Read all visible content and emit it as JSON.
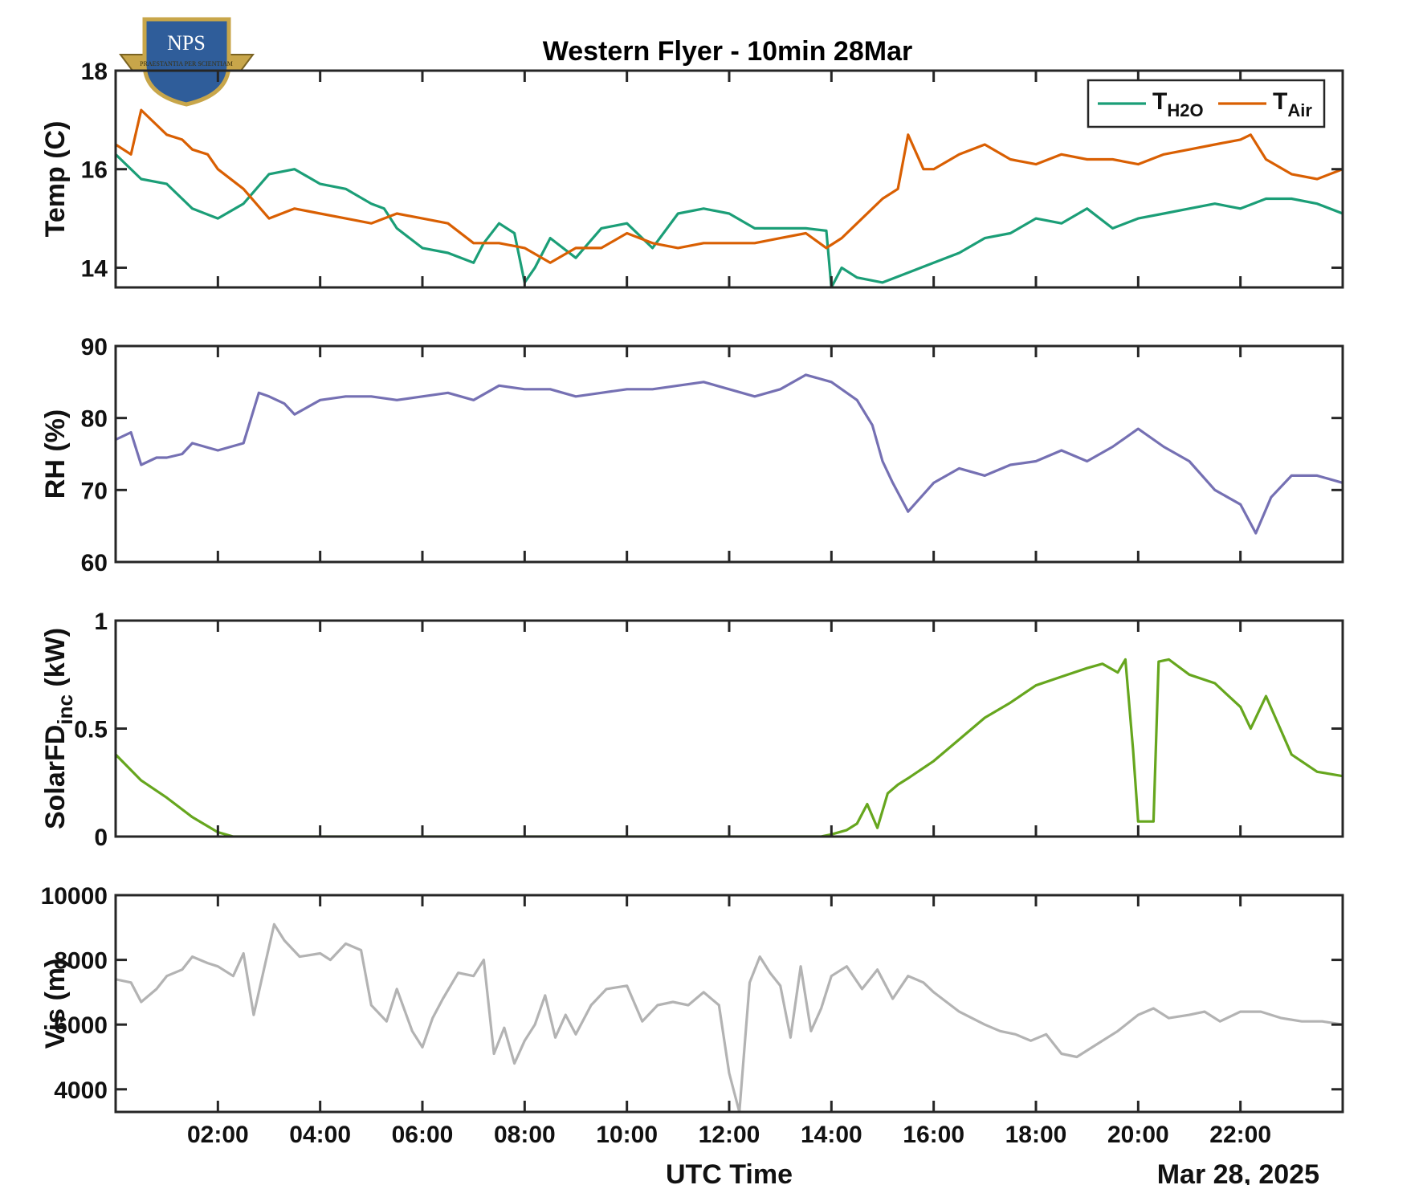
{
  "figure": {
    "title": "Western Flyer - 10min 28Mar",
    "xlabel": "UTC Time",
    "date_label": "Mar 28, 2025",
    "logo": {
      "text": "NPS",
      "motto": "PRAESTANTIA PER SCIENTIAM",
      "colors": {
        "shield": "#2f5d9a",
        "gold": "#c8a64a"
      }
    }
  },
  "chart_data": [
    {
      "type": "line",
      "ylabel": "Temp (C)",
      "ylim": [
        13.6,
        18
      ],
      "yticks": [
        14,
        16,
        18
      ],
      "xlim": [
        0,
        24
      ],
      "xticks": [
        2,
        4,
        6,
        8,
        10,
        12,
        14,
        16,
        18,
        20,
        22
      ],
      "xtick_labels": [
        "02:00",
        "04:00",
        "06:00",
        "08:00",
        "10:00",
        "12:00",
        "14:00",
        "16:00",
        "18:00",
        "20:00",
        "22:00"
      ],
      "legend": {
        "placement": "top-right"
      },
      "series": [
        {
          "name": "H2O",
          "legend_main": "T",
          "legend_sub": "H2O",
          "color": "#1b9e77",
          "x": [
            0,
            0.5,
            1,
            1.5,
            2,
            2.5,
            3,
            3.5,
            4,
            4.5,
            5,
            5.25,
            5.5,
            6,
            6.5,
            7,
            7.2,
            7.5,
            7.8,
            8,
            8.2,
            8.5,
            9,
            9.5,
            10,
            10.5,
            11,
            11.5,
            12,
            12.5,
            13,
            13.5,
            13.9,
            14,
            14.2,
            14.5,
            15,
            15.5,
            16,
            16.5,
            17,
            17.5,
            18,
            18.5,
            19,
            19.5,
            20,
            20.5,
            21,
            21.5,
            22,
            22.5,
            23,
            23.5,
            24
          ],
          "values": [
            16.3,
            15.8,
            15.7,
            15.2,
            15.0,
            15.3,
            15.9,
            16.0,
            15.7,
            15.6,
            15.3,
            15.2,
            14.8,
            14.4,
            14.3,
            14.1,
            14.5,
            14.9,
            14.7,
            13.7,
            14.0,
            14.6,
            14.2,
            14.8,
            14.9,
            14.4,
            15.1,
            15.2,
            15.1,
            14.8,
            14.8,
            14.8,
            14.75,
            13.6,
            14.0,
            13.8,
            13.7,
            13.9,
            14.1,
            14.3,
            14.6,
            14.7,
            15.0,
            14.9,
            15.2,
            14.8,
            15.0,
            15.1,
            15.2,
            15.3,
            15.2,
            15.4,
            15.4,
            15.3,
            15.1
          ]
        },
        {
          "name": "Air",
          "legend_main": "T",
          "legend_sub": "Air",
          "color": "#d95f02",
          "x": [
            0,
            0.3,
            0.5,
            0.8,
            1,
            1.3,
            1.5,
            1.8,
            2,
            2.5,
            3,
            3.5,
            4,
            4.5,
            5,
            5.5,
            6,
            6.5,
            7,
            7.5,
            8,
            8.5,
            9,
            9.5,
            10,
            10.5,
            11,
            11.5,
            12,
            12.5,
            13,
            13.5,
            13.9,
            14.2,
            14.5,
            15,
            15.3,
            15.5,
            15.8,
            16,
            16.5,
            17,
            17.5,
            18,
            18.5,
            19,
            19.5,
            20,
            20.5,
            21,
            21.5,
            22,
            22.2,
            22.5,
            23,
            23.5,
            24
          ],
          "values": [
            16.5,
            16.3,
            17.2,
            16.9,
            16.7,
            16.6,
            16.4,
            16.3,
            16.0,
            15.6,
            15.0,
            15.2,
            15.1,
            15.0,
            14.9,
            15.1,
            15.0,
            14.9,
            14.5,
            14.5,
            14.4,
            14.1,
            14.4,
            14.4,
            14.7,
            14.5,
            14.4,
            14.5,
            14.5,
            14.5,
            14.6,
            14.7,
            14.4,
            14.6,
            14.9,
            15.4,
            15.6,
            16.7,
            16.0,
            16.0,
            16.3,
            16.5,
            16.2,
            16.1,
            16.3,
            16.2,
            16.2,
            16.1,
            16.3,
            16.4,
            16.5,
            16.6,
            16.7,
            16.2,
            15.9,
            15.8,
            16.0
          ]
        }
      ]
    },
    {
      "type": "line",
      "ylabel": "RH (%)",
      "ylim": [
        60,
        90
      ],
      "yticks": [
        60,
        70,
        80,
        90
      ],
      "xlim": [
        0,
        24
      ],
      "series": [
        {
          "color": "#7570b3",
          "x": [
            0,
            0.3,
            0.5,
            0.8,
            1,
            1.3,
            1.5,
            2,
            2.5,
            2.8,
            3,
            3.3,
            3.5,
            4,
            4.5,
            5,
            5.5,
            6,
            6.5,
            7,
            7.5,
            8,
            8.5,
            9,
            9.5,
            10,
            10.5,
            11,
            11.5,
            12,
            12.5,
            13,
            13.5,
            14,
            14.5,
            14.8,
            15,
            15.2,
            15.5,
            16,
            16.5,
            17,
            17.5,
            18,
            18.5,
            19,
            19.5,
            20,
            20.5,
            21,
            21.5,
            22,
            22.3,
            22.6,
            23,
            23.5,
            24
          ],
          "values": [
            77,
            78,
            73.5,
            74.5,
            74.5,
            75,
            76.5,
            75.5,
            76.5,
            83.5,
            83,
            82,
            80.5,
            82.5,
            83,
            83,
            82.5,
            83,
            83.5,
            82.5,
            84.5,
            84,
            84,
            83,
            83.5,
            84,
            84,
            84.5,
            85,
            84,
            83,
            84,
            86,
            85,
            82.5,
            79,
            74,
            71,
            67,
            71,
            73,
            72,
            73.5,
            74,
            75.5,
            74,
            76,
            78.5,
            76,
            74,
            70,
            68,
            64,
            69,
            72,
            72,
            71
          ]
        }
      ]
    },
    {
      "type": "line",
      "ylabel": "SolarFD",
      "ylabel_sub": "inc",
      "ylabel_unit": "(kW)",
      "ylim": [
        0,
        1
      ],
      "yticks": [
        0,
        0.5,
        1
      ],
      "ytick_labels": [
        "0",
        "0.5",
        "1"
      ],
      "xlim": [
        0,
        24
      ],
      "series": [
        {
          "color": "#66a61e",
          "x": [
            0,
            0.5,
            1,
            1.5,
            2,
            2.3,
            2.5,
            5,
            8,
            11,
            13.8,
            14,
            14.3,
            14.5,
            14.7,
            14.9,
            15.1,
            15.3,
            15.5,
            16,
            16.5,
            17,
            17.5,
            18,
            18.5,
            19,
            19.3,
            19.6,
            19.75,
            19.9,
            20,
            20.3,
            20.4,
            20.6,
            21,
            21.5,
            22,
            22.2,
            22.5,
            23,
            23.5,
            24
          ],
          "values": [
            0.38,
            0.26,
            0.18,
            0.09,
            0.02,
            0.0,
            0.0,
            0.0,
            0.0,
            0.0,
            0.0,
            0.01,
            0.03,
            0.06,
            0.15,
            0.04,
            0.2,
            0.24,
            0.27,
            0.35,
            0.45,
            0.55,
            0.62,
            0.7,
            0.74,
            0.78,
            0.8,
            0.76,
            0.82,
            0.4,
            0.07,
            0.07,
            0.81,
            0.82,
            0.75,
            0.71,
            0.6,
            0.5,
            0.65,
            0.38,
            0.3,
            0.28
          ]
        }
      ]
    },
    {
      "type": "line",
      "ylabel": "Vis (m)",
      "ylim": [
        3300,
        10000
      ],
      "yticks": [
        4000,
        6000,
        8000,
        10000
      ],
      "xlim": [
        0,
        24
      ],
      "series": [
        {
          "color": "#b3b3b3",
          "x": [
            0,
            0.3,
            0.5,
            0.8,
            1,
            1.3,
            1.5,
            1.8,
            2,
            2.3,
            2.5,
            2.7,
            2.9,
            3.1,
            3.3,
            3.6,
            4,
            4.2,
            4.5,
            4.8,
            5,
            5.3,
            5.5,
            5.8,
            6,
            6.2,
            6.4,
            6.7,
            7,
            7.2,
            7.4,
            7.6,
            7.8,
            8,
            8.2,
            8.4,
            8.6,
            8.8,
            9,
            9.3,
            9.6,
            10,
            10.3,
            10.6,
            10.9,
            11.2,
            11.5,
            11.8,
            12,
            12.2,
            12.4,
            12.6,
            12.8,
            13,
            13.2,
            13.4,
            13.6,
            13.8,
            14,
            14.3,
            14.6,
            14.9,
            15.2,
            15.5,
            15.8,
            16,
            16.5,
            17,
            17.3,
            17.6,
            17.9,
            18.2,
            18.5,
            18.8,
            19.2,
            19.6,
            20,
            20.3,
            20.6,
            21,
            21.3,
            21.6,
            22,
            22.4,
            22.8,
            23.2,
            23.6,
            24
          ],
          "values": [
            7400,
            7300,
            6700,
            7100,
            7500,
            7700,
            8100,
            7900,
            7800,
            7500,
            8200,
            6300,
            7700,
            9100,
            8600,
            8100,
            8200,
            8000,
            8500,
            8300,
            6600,
            6100,
            7100,
            5800,
            5300,
            6200,
            6800,
            7600,
            7500,
            8000,
            5100,
            5900,
            4800,
            5500,
            6000,
            6900,
            5600,
            6300,
            5700,
            6600,
            7100,
            7200,
            6100,
            6600,
            6700,
            6600,
            7000,
            6600,
            4500,
            3300,
            7300,
            8100,
            7600,
            7200,
            5600,
            7800,
            5800,
            6500,
            7500,
            7800,
            7100,
            7700,
            6800,
            7500,
            7300,
            7000,
            6400,
            6000,
            5800,
            5700,
            5500,
            5700,
            5100,
            5000,
            5400,
            5800,
            6300,
            6500,
            6200,
            6300,
            6400,
            6100,
            6400,
            6400,
            6200,
            6100,
            6100,
            6000
          ]
        }
      ]
    }
  ]
}
